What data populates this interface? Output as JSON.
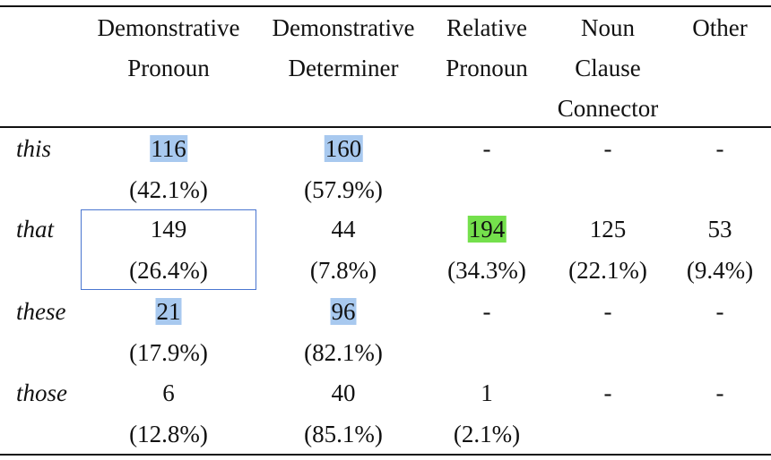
{
  "table": {
    "columns": [
      [
        "Demonstrative",
        "Pronoun"
      ],
      [
        "Demonstrative",
        "Determiner"
      ],
      [
        "Relative",
        "Pronoun"
      ],
      [
        "Noun",
        "Clause",
        "Connector"
      ],
      [
        "Other"
      ]
    ],
    "highlight_colors": {
      "blue": "#a8c9ef",
      "green": "#74e04c"
    },
    "box_color": "#4a76d0",
    "rows": [
      {
        "label": "this",
        "cells": [
          {
            "count": 116,
            "pct": "(42.1%)",
            "highlight": "blue"
          },
          {
            "count": 160,
            "pct": "(57.9%)",
            "highlight": "blue"
          },
          {
            "count": "-"
          },
          {
            "count": "-"
          },
          {
            "count": "-"
          }
        ]
      },
      {
        "label": "that",
        "cells": [
          {
            "count": 149,
            "pct": "(26.4%)",
            "boxed": true
          },
          {
            "count": 44,
            "pct": "(7.8%)"
          },
          {
            "count": 194,
            "pct": "(34.3%)",
            "highlight": "green"
          },
          {
            "count": 125,
            "pct": "(22.1%)"
          },
          {
            "count": 53,
            "pct": "(9.4%)"
          }
        ]
      },
      {
        "label": "these",
        "cells": [
          {
            "count": 21,
            "pct": "(17.9%)",
            "highlight": "blue"
          },
          {
            "count": 96,
            "pct": "(82.1%)",
            "highlight": "blue"
          },
          {
            "count": "-"
          },
          {
            "count": "-"
          },
          {
            "count": "-"
          }
        ]
      },
      {
        "label": "those",
        "cells": [
          {
            "count": 6,
            "pct": "(12.8%)"
          },
          {
            "count": 40,
            "pct": "(85.1%)"
          },
          {
            "count": 1,
            "pct": "(2.1%)"
          },
          {
            "count": "-"
          },
          {
            "count": "-"
          }
        ]
      }
    ]
  }
}
